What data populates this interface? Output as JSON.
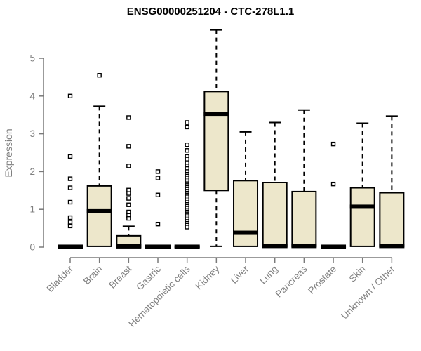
{
  "chart_data": {
    "type": "boxplot",
    "title": "ENSG00000251204 - CTC-278L1.1",
    "xlabel": "",
    "ylabel": "Expression",
    "ylim": [
      0,
      5.8
    ],
    "yticks": [
      0,
      1,
      2,
      3,
      4,
      5
    ],
    "grid": false,
    "legend": "none",
    "colors": {
      "box_fill": "#EDE7CB",
      "box_stroke": "#000000",
      "median": "#000000",
      "whisker": "#000000",
      "axis": "#7a7a7a",
      "tick_text": "#808080",
      "title_text": "#000000",
      "background": "#ffffff"
    },
    "categories": [
      "Bladder",
      "Brain",
      "Breast",
      "Gastric",
      "Hematopoietic cells",
      "Kidney",
      "Liver",
      "Lung",
      "Pancreas",
      "Prostate",
      "Skin",
      "Unknown / Other"
    ],
    "series": [
      {
        "category": "Bladder",
        "q1": 0,
        "median": 0.01,
        "q3": 0.02,
        "whisker_low": 0,
        "whisker_high": 0.02,
        "outliers": [
          4.0,
          2.4,
          1.81,
          1.57,
          1.19,
          0.78,
          0.66,
          0.56
        ]
      },
      {
        "category": "Brain",
        "q1": 0.02,
        "median": 0.95,
        "q3": 1.62,
        "whisker_low": 0,
        "whisker_high": 3.73,
        "outliers": [
          4.55
        ]
      },
      {
        "category": "Breast",
        "q1": 0,
        "median": 0.02,
        "q3": 0.3,
        "whisker_low": 0,
        "whisker_high": 0.55,
        "outliers": [
          3.43,
          2.67,
          2.15,
          1.51,
          1.42,
          1.29,
          1.12,
          0.93,
          0.84,
          0.76
        ]
      },
      {
        "category": "Gastric",
        "q1": 0,
        "median": 0.01,
        "q3": 0.02,
        "whisker_low": 0,
        "whisker_high": 0.02,
        "outliers": [
          2.0,
          1.83,
          1.38,
          0.61
        ]
      },
      {
        "category": "Hematopoietic cells",
        "q1": 0,
        "median": 0.01,
        "q3": 0.02,
        "whisker_low": 0,
        "whisker_high": 0.02,
        "outliers": [
          3.3,
          3.18,
          2.71,
          2.56,
          2.4,
          2.33,
          2.22,
          2.15,
          2.08,
          2.0,
          1.93,
          1.88,
          1.83,
          1.78,
          1.73,
          1.68,
          1.63,
          1.58,
          1.53,
          1.48,
          1.43,
          1.38,
          1.33,
          1.28,
          1.23,
          1.18,
          1.13,
          1.08,
          1.03,
          0.98,
          0.93,
          0.88,
          0.83,
          0.78,
          0.73,
          0.68,
          0.63,
          0.58,
          0.53
        ]
      },
      {
        "category": "Kidney",
        "q1": 1.5,
        "median": 3.53,
        "q3": 4.12,
        "whisker_low": 0.02,
        "whisker_high": 5.75,
        "outliers": []
      },
      {
        "category": "Liver",
        "q1": 0.02,
        "median": 0.38,
        "q3": 1.76,
        "whisker_low": 0,
        "whisker_high": 3.05,
        "outliers": []
      },
      {
        "category": "Lung",
        "q1": 0.02,
        "median": 0.03,
        "q3": 1.71,
        "whisker_low": 0,
        "whisker_high": 3.3,
        "outliers": []
      },
      {
        "category": "Pancreas",
        "q1": 0.02,
        "median": 0.03,
        "q3": 1.47,
        "whisker_low": 0,
        "whisker_high": 3.63,
        "outliers": []
      },
      {
        "category": "Prostate",
        "q1": 0,
        "median": 0.01,
        "q3": 0.02,
        "whisker_low": 0,
        "whisker_high": 0.02,
        "outliers": [
          2.73,
          1.67
        ]
      },
      {
        "category": "Skin",
        "q1": 0.02,
        "median": 1.07,
        "q3": 1.57,
        "whisker_low": 0,
        "whisker_high": 3.28,
        "outliers": []
      },
      {
        "category": "Unknown / Other",
        "q1": 0.02,
        "median": 0.03,
        "q3": 1.44,
        "whisker_low": 0,
        "whisker_high": 3.47,
        "outliers": []
      }
    ]
  }
}
